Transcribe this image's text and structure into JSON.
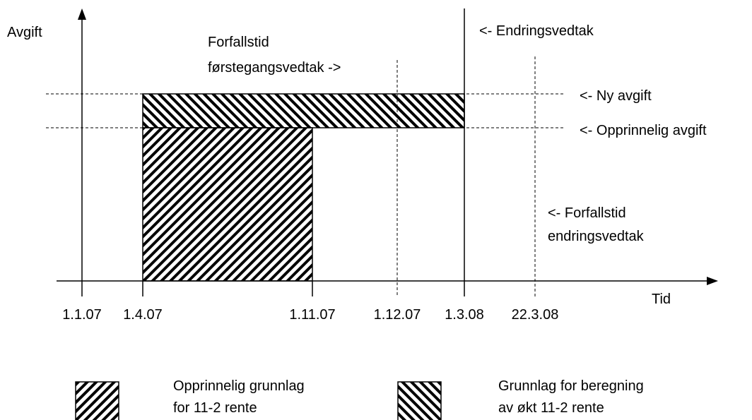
{
  "axes": {
    "y_label": "Avgift",
    "x_label": "Tid"
  },
  "dates": [
    "1.1.07",
    "1.4.07",
    "1.11.07",
    "1.12.07",
    "1.3.08",
    "22.3.08"
  ],
  "annotations": {
    "endringsvedtak": "<- Endringsvedtak",
    "forfallstid_forste": [
      "Forfallstid",
      "førstegangsvedtak ->"
    ],
    "ny_avgift": "<- Ny avgift",
    "opprinnelig_avgift": "<- Opprinnelig avgift",
    "forfallstid_endring": [
      "<- Forfallstid",
      "endringsvedtak"
    ]
  },
  "legend": [
    {
      "label": [
        "Opprinnelig grunnlag",
        "for 11-2 rente"
      ]
    },
    {
      "label": [
        "Grunnlag for beregning",
        "av økt 11-2 rente"
      ]
    }
  ]
}
